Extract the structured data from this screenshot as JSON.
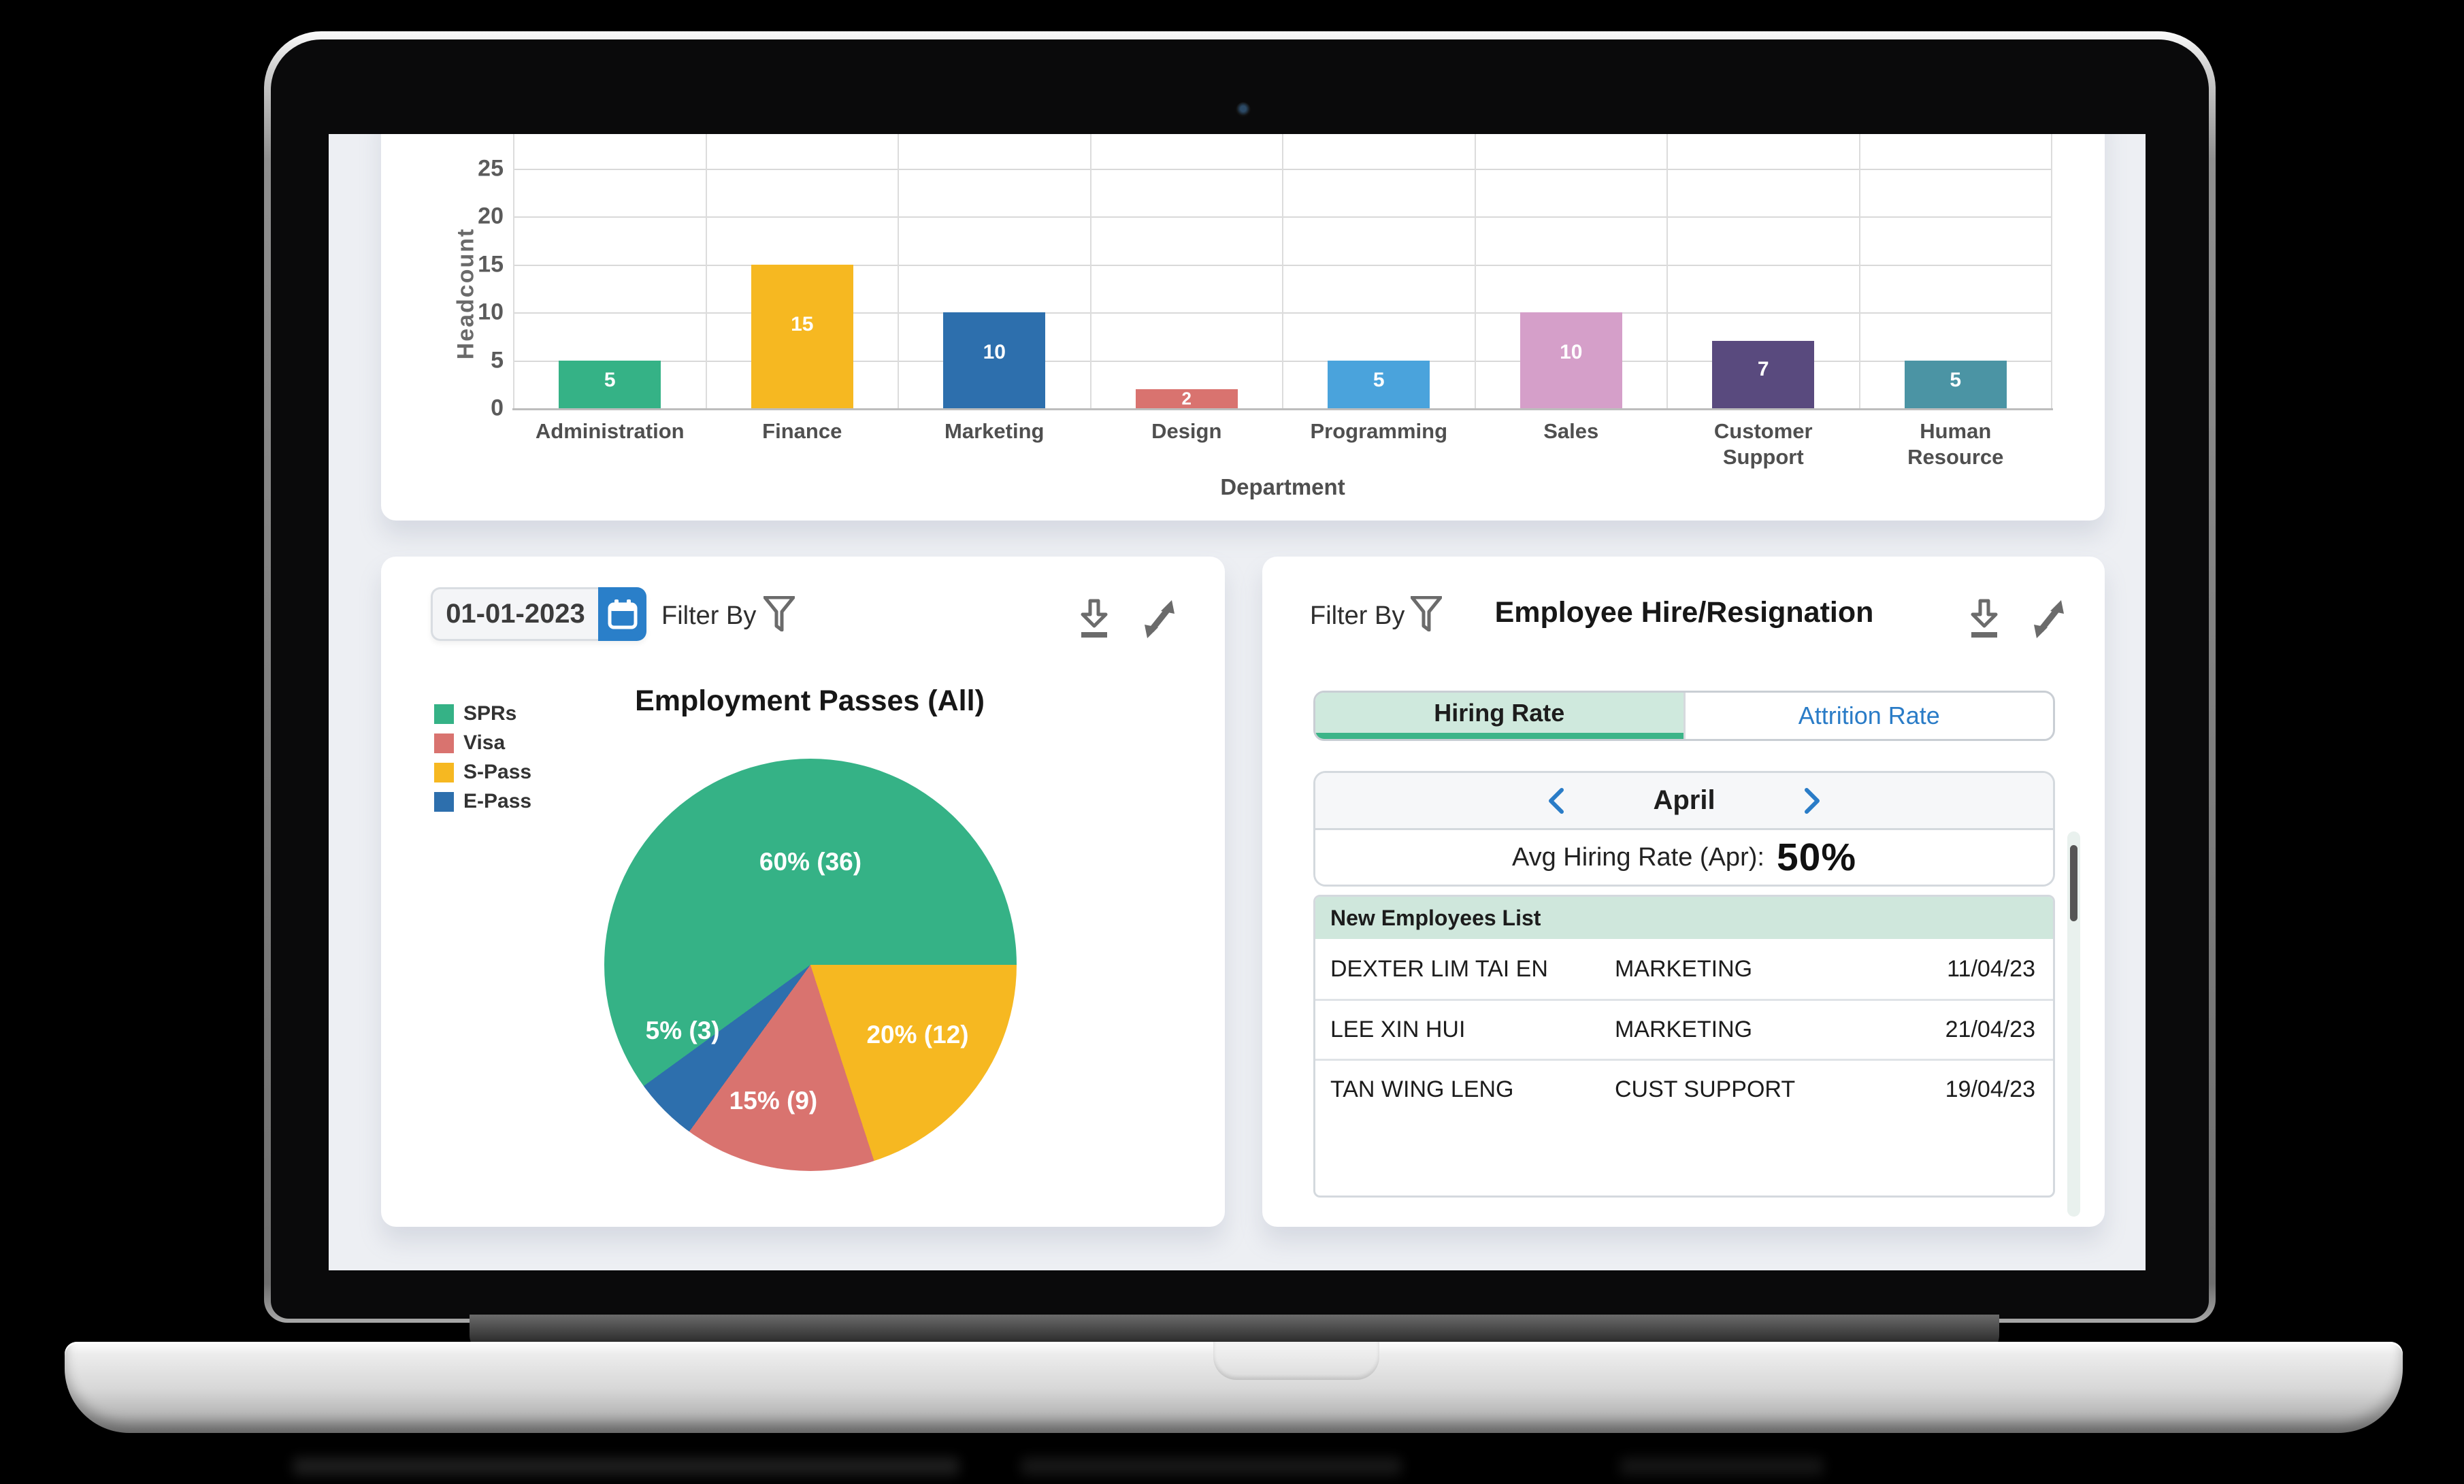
{
  "chart_data": [
    {
      "type": "bar",
      "title": "",
      "xlabel": "Department",
      "ylabel": "Headcount",
      "categories": [
        "Administration",
        "Finance",
        "Marketing",
        "Design",
        "Programming",
        "Sales",
        "Customer Support",
        "Human Resource"
      ],
      "values": [
        5,
        15,
        10,
        2,
        5,
        10,
        7,
        5
      ],
      "colors": [
        "#35b286",
        "#f6b821",
        "#2d6fad",
        "#d9736f",
        "#4aa3dc",
        "#d59fc9",
        "#594a7e",
        "#4b94a4"
      ],
      "yticks": [
        0,
        5,
        10,
        15,
        20,
        25
      ],
      "ylim": [
        0,
        25
      ],
      "grid": true,
      "legend_position": "none"
    },
    {
      "type": "pie",
      "title": "Employment Passes (All)",
      "legend_position": "left",
      "slices": [
        {
          "name": "S-Pass",
          "pct": 20,
          "count": 12,
          "color": "#f6b821",
          "label": "20% (12)",
          "label_pos": [
            76,
            67
          ]
        },
        {
          "name": "Visa",
          "pct": 15,
          "count": 9,
          "color": "#d9736f",
          "label": "15% (9)",
          "label_pos": [
            41,
            83
          ]
        },
        {
          "name": "E-Pass",
          "pct": 5,
          "count": 3,
          "color": "#2d6fad",
          "label": "5% (3)",
          "label_pos": [
            19,
            66
          ]
        },
        {
          "name": "SPRs",
          "pct": 60,
          "count": 36,
          "color": "#35b286",
          "label": "60% (36)",
          "label_pos": [
            50,
            25
          ]
        }
      ]
    }
  ],
  "left_panel": {
    "date_value": "01-01-2023",
    "filter_by_label": "Filter By",
    "title": "Employment Passes (All)",
    "legend": [
      {
        "label": "SPRs",
        "color": "#35b286"
      },
      {
        "label": "Visa",
        "color": "#d9736f"
      },
      {
        "label": "S-Pass",
        "color": "#f6b821"
      },
      {
        "label": "E-Pass",
        "color": "#2d6fad"
      }
    ]
  },
  "right_panel": {
    "filter_by_label": "Filter By",
    "title": "Employee Hire/Resignation",
    "tabs": [
      {
        "label": "Hiring Rate",
        "active": true
      },
      {
        "label": "Attrition Rate",
        "active": false
      }
    ],
    "month": "April",
    "stats_label": "Avg Hiring Rate (Apr):",
    "stats_value": "50%",
    "table_header": "New Employees List",
    "rows": [
      {
        "name": "DEXTER LIM TAI EN",
        "dept": "MARKETING",
        "date": "11/04/23"
      },
      {
        "name": "LEE XIN HUI",
        "dept": "MARKETING",
        "date": "21/04/23"
      },
      {
        "name": "TAN WING LENG",
        "dept": "CUST SUPPORT",
        "date": "19/04/23"
      }
    ]
  },
  "colors": {
    "accent_green": "#3cb588",
    "accent_blue": "#2a7cc7",
    "tab_active_bg": "#cfe9dd",
    "table_header_bg": "#cfe7dc",
    "icon_gray": "#6b6b6b",
    "calendar_button": "#2a7fc9"
  }
}
